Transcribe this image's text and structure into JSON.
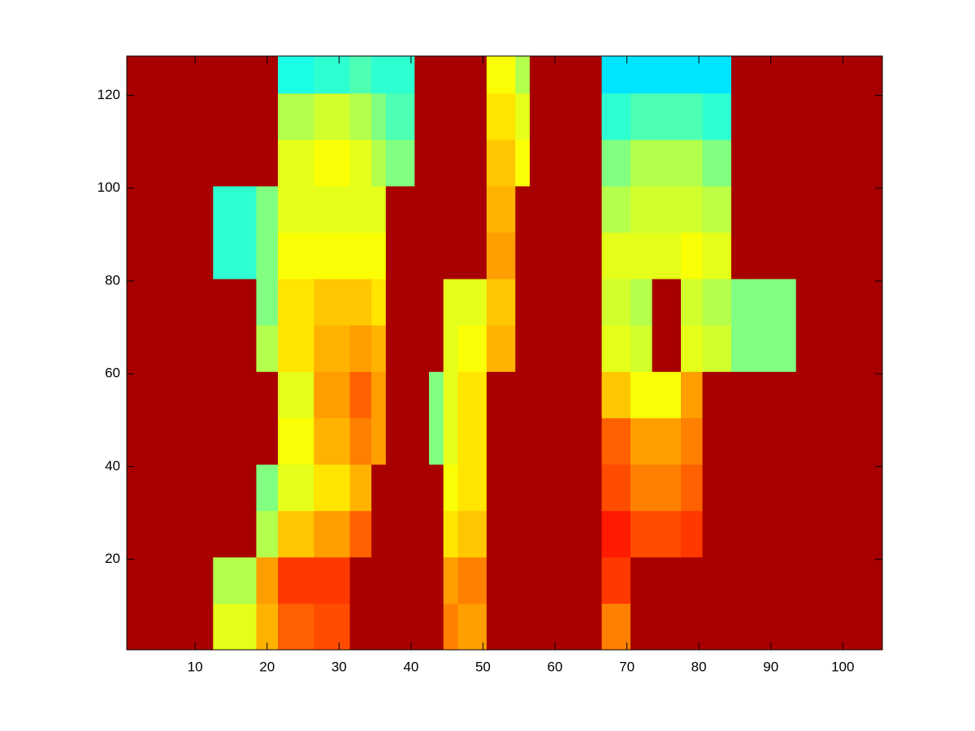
{
  "chart_data": {
    "type": "heatmap",
    "colormap": "jet",
    "clim": [
      0,
      1
    ],
    "x_edges": [
      0.5,
      12.5,
      18.5,
      21.5,
      26.5,
      31.5,
      34.5,
      36.5,
      40.5,
      42.5,
      44.5,
      46.5,
      50.5,
      54.5,
      56.5,
      66.5,
      70.5,
      73.5,
      77.5,
      80.5,
      84.5,
      86.5,
      93.5,
      105.5
    ],
    "y_edges": [
      0.5,
      10.5,
      20.5,
      30.5,
      40.5,
      50.5,
      60.5,
      70.5,
      80.5,
      90.5,
      100.5,
      110.5,
      120.5,
      128.5
    ],
    "values": [
      [
        0.96,
        0.6,
        0.7,
        0.78,
        0.8,
        0.96,
        0.96,
        0.96,
        0.96,
        0.96,
        0.75,
        0.72,
        0.96,
        0.96,
        0.96,
        0.75,
        0.96,
        0.96,
        0.96,
        0.96,
        0.96,
        0.96,
        0.96
      ],
      [
        0.96,
        0.55,
        0.72,
        0.82,
        0.82,
        0.96,
        0.96,
        0.96,
        0.96,
        0.96,
        0.72,
        0.75,
        0.96,
        0.96,
        0.96,
        0.82,
        0.96,
        0.96,
        0.96,
        0.96,
        0.96,
        0.96,
        0.96
      ],
      [
        0.96,
        0.96,
        0.55,
        0.68,
        0.72,
        0.78,
        0.96,
        0.96,
        0.96,
        0.96,
        0.65,
        0.68,
        0.96,
        0.96,
        0.96,
        0.85,
        0.8,
        0.8,
        0.82,
        0.96,
        0.96,
        0.96,
        0.96
      ],
      [
        0.96,
        0.96,
        0.5,
        0.6,
        0.65,
        0.7,
        0.96,
        0.96,
        0.96,
        0.96,
        0.62,
        0.65,
        0.96,
        0.96,
        0.96,
        0.8,
        0.75,
        0.75,
        0.78,
        0.96,
        0.96,
        0.96,
        0.96
      ],
      [
        0.96,
        0.96,
        0.96,
        0.62,
        0.7,
        0.75,
        0.72,
        0.96,
        0.96,
        0.5,
        0.6,
        0.65,
        0.96,
        0.96,
        0.96,
        0.78,
        0.72,
        0.72,
        0.75,
        0.96,
        0.96,
        0.96,
        0.96
      ],
      [
        0.96,
        0.96,
        0.96,
        0.6,
        0.72,
        0.78,
        0.72,
        0.96,
        0.96,
        0.5,
        0.6,
        0.65,
        0.96,
        0.96,
        0.96,
        0.68,
        0.62,
        0.62,
        0.72,
        0.96,
        0.96,
        0.96,
        0.96
      ],
      [
        0.96,
        0.96,
        0.55,
        0.65,
        0.7,
        0.72,
        0.7,
        0.96,
        0.96,
        0.96,
        0.6,
        0.62,
        0.7,
        0.96,
        0.96,
        0.6,
        0.58,
        0.96,
        0.6,
        0.58,
        0.5,
        0.5,
        0.96
      ],
      [
        0.96,
        0.96,
        0.5,
        0.65,
        0.68,
        0.68,
        0.65,
        0.96,
        0.96,
        0.96,
        0.6,
        0.6,
        0.68,
        0.96,
        0.96,
        0.58,
        0.55,
        0.96,
        0.58,
        0.55,
        0.5,
        0.5,
        0.96
      ],
      [
        0.96,
        0.42,
        0.5,
        0.62,
        0.62,
        0.62,
        0.62,
        0.96,
        0.96,
        0.96,
        0.96,
        0.96,
        0.72,
        0.96,
        0.96,
        0.6,
        0.6,
        0.6,
        0.62,
        0.6,
        0.96,
        0.96,
        0.96
      ],
      [
        0.96,
        0.42,
        0.5,
        0.6,
        0.6,
        0.6,
        0.6,
        0.96,
        0.96,
        0.96,
        0.96,
        0.96,
        0.7,
        0.96,
        0.96,
        0.55,
        0.58,
        0.58,
        0.58,
        0.56,
        0.96,
        0.96,
        0.96
      ],
      [
        0.96,
        0.96,
        0.96,
        0.6,
        0.62,
        0.6,
        0.55,
        0.5,
        0.96,
        0.96,
        0.96,
        0.96,
        0.68,
        0.62,
        0.96,
        0.5,
        0.55,
        0.55,
        0.55,
        0.5,
        0.96,
        0.96,
        0.96
      ],
      [
        0.96,
        0.96,
        0.96,
        0.55,
        0.58,
        0.55,
        0.5,
        0.45,
        0.96,
        0.96,
        0.96,
        0.96,
        0.65,
        0.6,
        0.96,
        0.42,
        0.45,
        0.45,
        0.45,
        0.42,
        0.96,
        0.96,
        0.96
      ],
      [
        0.96,
        0.96,
        0.96,
        0.4,
        0.42,
        0.45,
        0.42,
        0.42,
        0.96,
        0.96,
        0.96,
        0.96,
        0.62,
        0.55,
        0.96,
        0.35,
        0.35,
        0.35,
        0.35,
        0.35,
        0.96,
        0.96,
        0.96
      ]
    ],
    "xlim": [
      0.5,
      105.5
    ],
    "xticks": [
      10,
      20,
      30,
      40,
      50,
      60,
      70,
      80,
      90,
      100
    ],
    "ylim": [
      0.5,
      128.5
    ],
    "yticks": [
      20,
      40,
      60,
      80,
      100,
      120
    ]
  }
}
